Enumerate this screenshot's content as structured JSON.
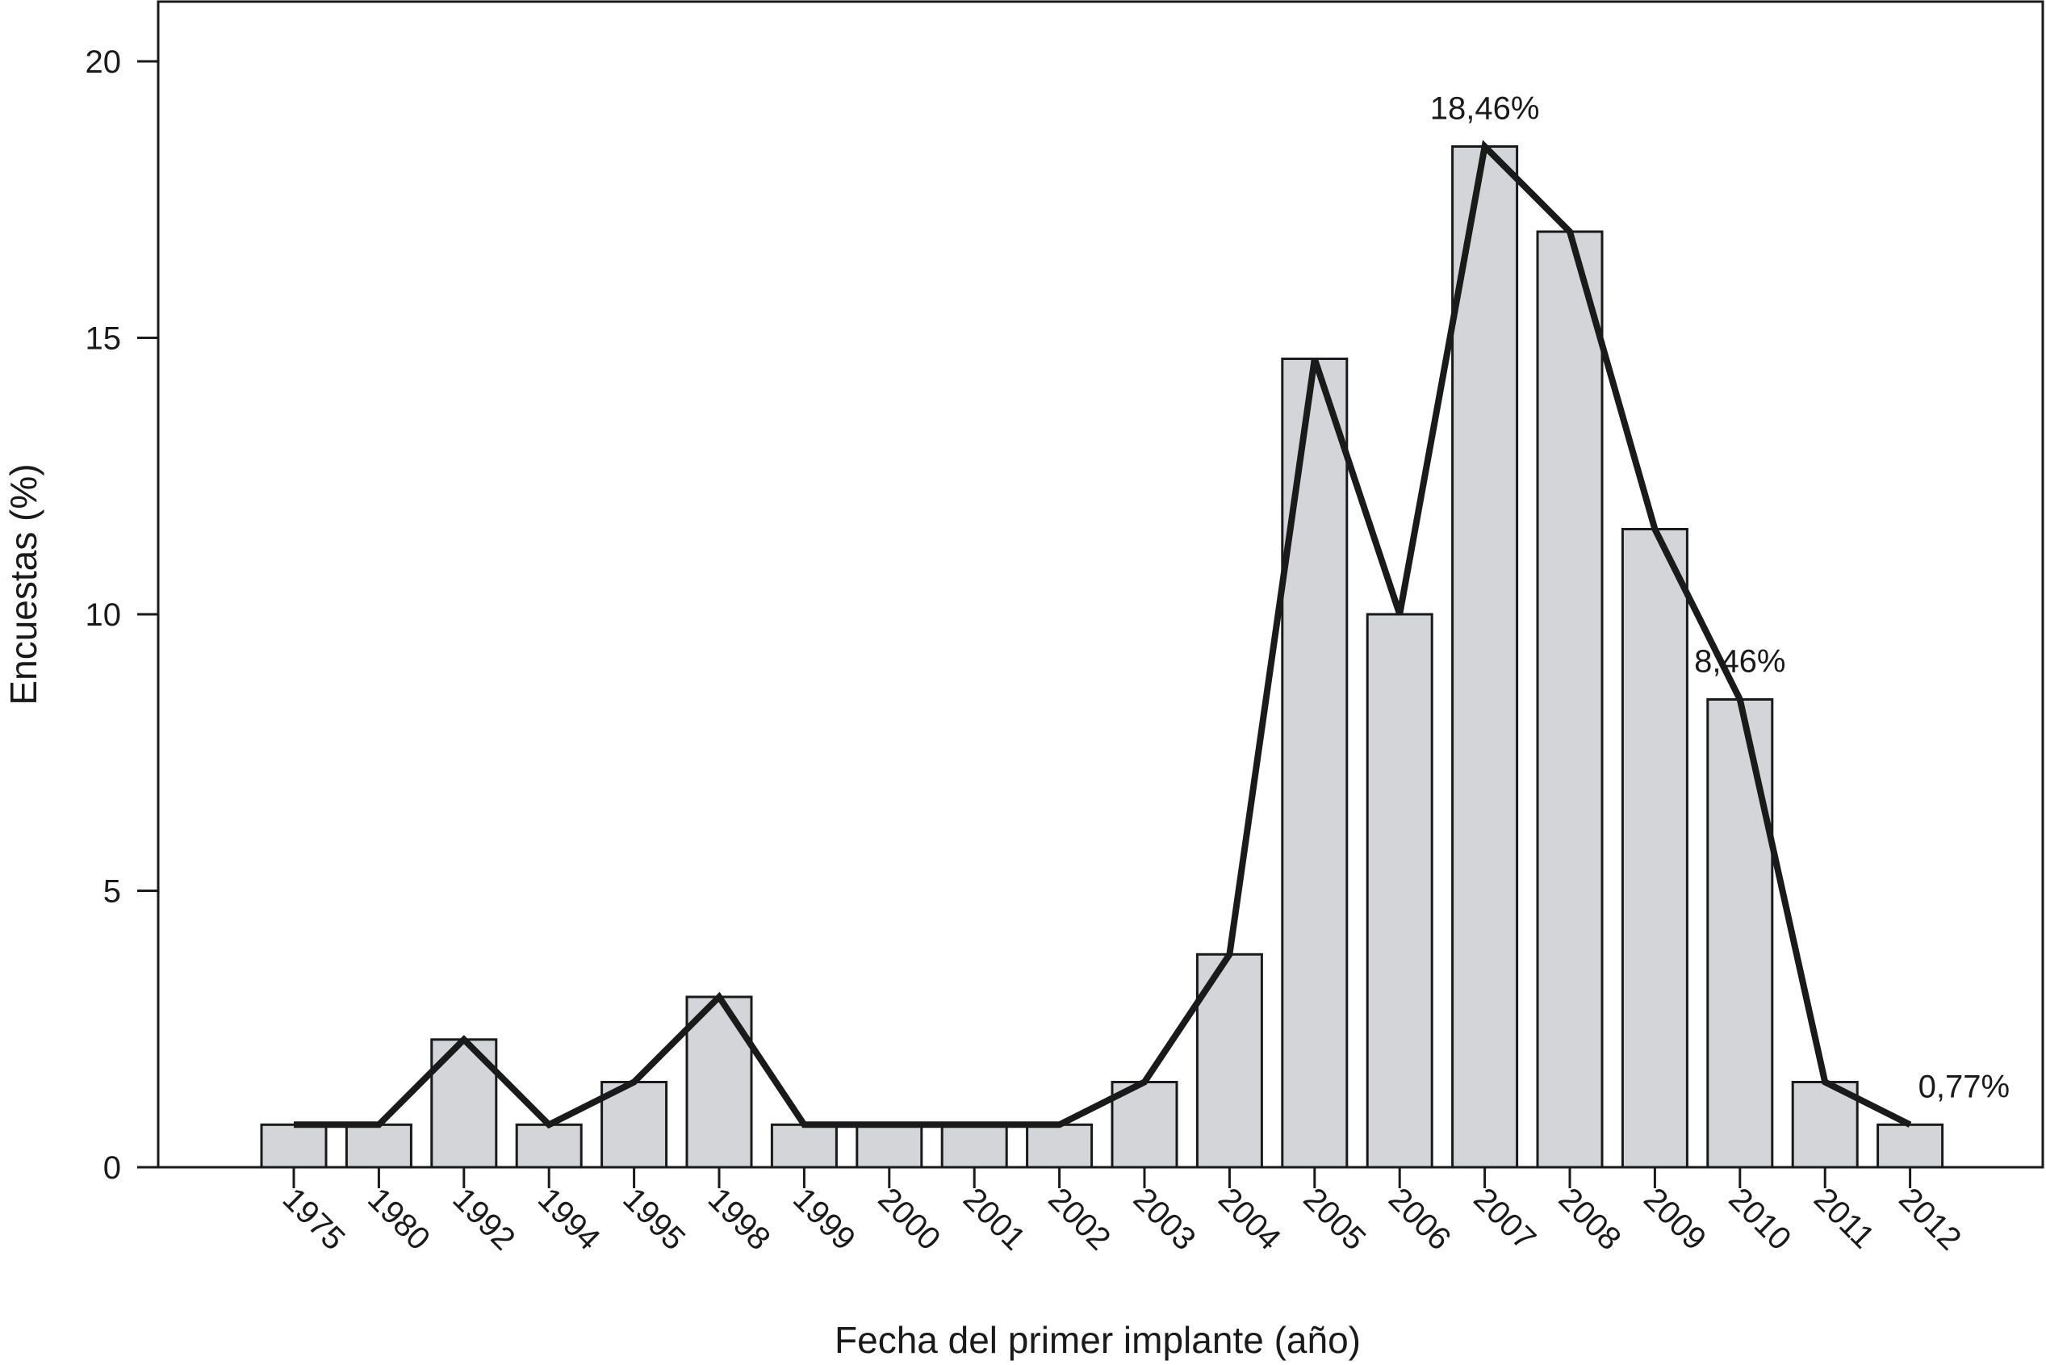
{
  "chart_data": {
    "type": "bar",
    "categories": [
      "1975",
      "1980",
      "1992",
      "1994",
      "1995",
      "1998",
      "1999",
      "2000",
      "2001",
      "2002",
      "2003",
      "2004",
      "2005",
      "2006",
      "2007",
      "2008",
      "2009",
      "2010",
      "2011",
      "2012"
    ],
    "values": [
      0.77,
      0.77,
      2.31,
      0.77,
      1.54,
      3.08,
      0.77,
      0.77,
      0.77,
      0.77,
      1.54,
      3.85,
      14.62,
      10.0,
      18.46,
      16.92,
      11.54,
      8.46,
      1.54,
      0.77
    ],
    "line_overlay": true,
    "title": "",
    "xlabel": "Fecha del primer implante (año)",
    "ylabel": "Encuestas (%)",
    "ylim": [
      0,
      20
    ],
    "yticks": [
      0,
      5,
      10,
      15,
      20
    ],
    "grid": false,
    "annotations": [
      {
        "category": "2007",
        "text": "18,46%"
      },
      {
        "category": "2010",
        "text": "8,46%"
      },
      {
        "category": "2012",
        "text": "0,77%"
      }
    ],
    "colors": {
      "bar_fill": "#d3d5d8",
      "bar_stroke": "#1a1a1a",
      "line": "#1a1a1a"
    }
  }
}
